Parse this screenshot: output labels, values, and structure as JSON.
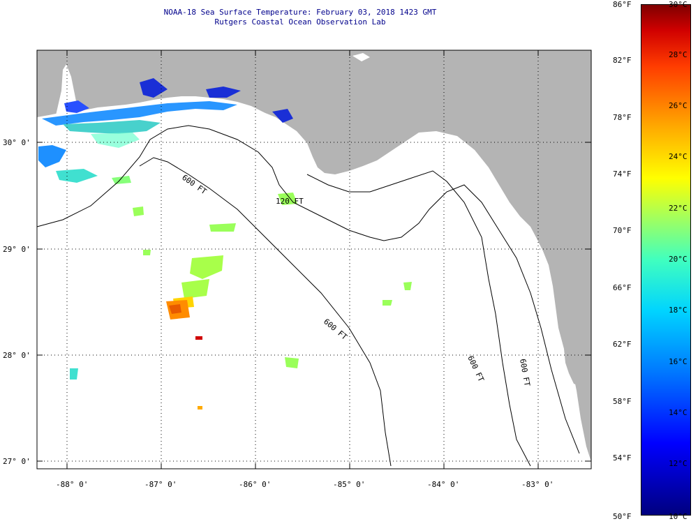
{
  "title": {
    "line1": "NOAA-18 Sea Surface Temperature:  February 03, 2018 1423 GMT",
    "line2": "Rutgers Coastal Ocean Observation Lab"
  },
  "axes": {
    "lon_labels": [
      "-88° 0'",
      "-87° 0'",
      "-86° 0'",
      "-85° 0'",
      "-84° 0'",
      "-83° 0'"
    ],
    "lat_labels": [
      "30° 0'",
      "29° 0'",
      "28° 0'",
      "27° 0'"
    ]
  },
  "contours": {
    "c120": "120 FT",
    "c600a": "600 FT",
    "c600b": "600 FT",
    "c600c": "600 FT",
    "c600d": "600 FT"
  },
  "colorbar": {
    "fahrenheit": [
      "86°F",
      "82°F",
      "78°F",
      "74°F",
      "70°F",
      "66°F",
      "62°F",
      "58°F",
      "54°F",
      "50°F"
    ],
    "celsius": [
      "30°C",
      "28°C",
      "26°C",
      "24°C",
      "22°C",
      "20°C",
      "18°C",
      "16°C",
      "14°C",
      "12°C",
      "10°C"
    ]
  },
  "colors": {
    "land": "#b4b4b4",
    "water": "#ffffff",
    "grid": "#000000",
    "title": "#00008b"
  }
}
